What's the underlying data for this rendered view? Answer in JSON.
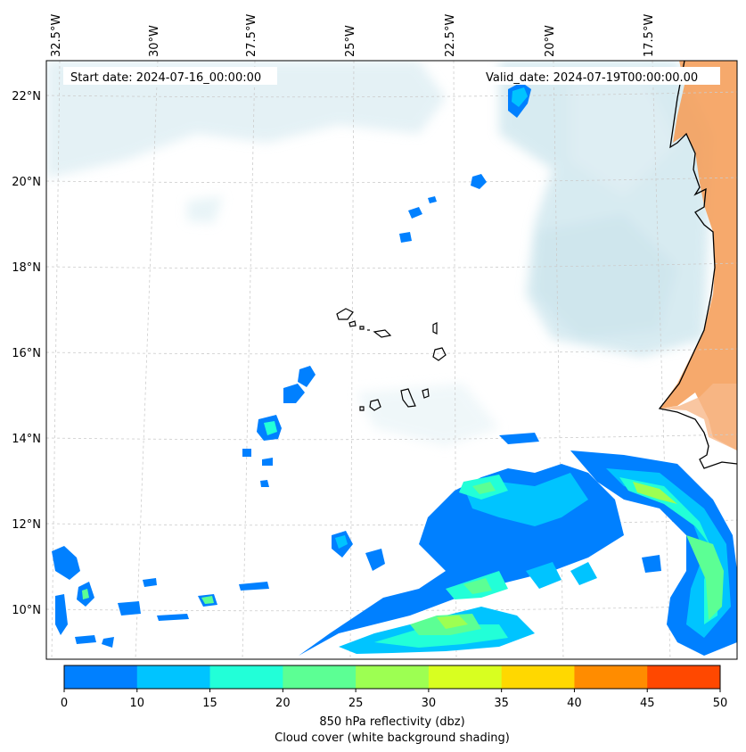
{
  "header": {
    "start_date": "Start date: 2024-07-16_00:00:00",
    "valid_date": "Valid_date: 2024-07-19T00:00:00.00"
  },
  "lon_labels": [
    "32.5°W",
    "30°W",
    "27.5°W",
    "25°W",
    "22.5°W",
    "20°W",
    "17.5°W"
  ],
  "lat_labels": [
    "22°N",
    "20°N",
    "18°N",
    "16°N",
    "14°N",
    "12°N",
    "10°N"
  ],
  "colorbar": {
    "ticks": [
      "0",
      "10",
      "15",
      "20",
      "25",
      "30",
      "35",
      "40",
      "45",
      "50"
    ],
    "colors": [
      "#0080ff",
      "#00c4ff",
      "#22ffd8",
      "#5cff94",
      "#9dff52",
      "#d8ff20",
      "#ffd800",
      "#ff8c00",
      "#ff4800"
    ],
    "label_line1": "850 hPa reflectivity (dbz)",
    "label_line2": "Cloud cover (white background shading)"
  },
  "colors": {
    "land": "#f5a05c",
    "cloud": "#b8dbe6",
    "coast": "#000000",
    "grid": "#c8c8c8"
  }
}
